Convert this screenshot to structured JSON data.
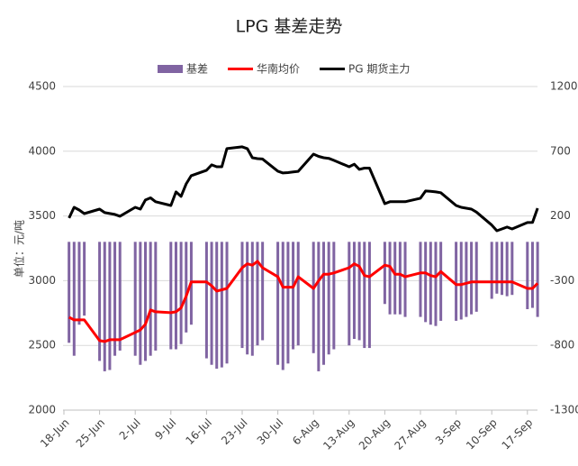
{
  "chart_data": {
    "type": "bar_line",
    "title": "LPG 基差走势",
    "y_label": "单位：元/吨",
    "categories": [
      "18-Jun",
      null,
      null,
      null,
      null,
      "25-Jun",
      null,
      null,
      null,
      null,
      "2-Jul",
      null,
      null,
      null,
      null,
      "9-Jul",
      null,
      null,
      null,
      null,
      "16-Jul",
      null,
      null,
      null,
      null,
      "23-Jul",
      null,
      null,
      null,
      null,
      "30-Jul",
      null,
      null,
      null,
      null,
      "6-Aug",
      null,
      null,
      null,
      null,
      "13-Aug",
      null,
      null,
      null,
      null,
      "20-Aug",
      null,
      null,
      null,
      null,
      "27-Aug",
      null,
      null,
      null,
      null,
      "3-Sep",
      null,
      null,
      null,
      null,
      "10-Sep",
      null,
      null,
      null,
      null,
      "17-Sep",
      null,
      null
    ],
    "series": [
      {
        "name": "基差",
        "type": "bar",
        "axis": "y2",
        "color": "#8064a2",
        "values": [
          null,
          -780,
          -880,
          -640,
          -570,
          -920,
          -1000,
          -990,
          -880,
          -840,
          -880,
          -950,
          -920,
          -880,
          -840,
          -830,
          -830,
          -790,
          -700,
          -640,
          -900,
          -950,
          -980,
          -970,
          -940,
          -820,
          -870,
          -880,
          -800,
          -760,
          -950,
          -990,
          -940,
          -830,
          -800,
          -860,
          -1000,
          -950,
          -870,
          -830,
          -800,
          -750,
          -760,
          -820,
          -820,
          -480,
          -560,
          -560,
          -560,
          -580,
          -580,
          -620,
          -640,
          -650,
          -610,
          -610,
          -600,
          -580,
          -560,
          -540,
          -440,
          -400,
          -410,
          -420,
          -410,
          -520,
          -510,
          -580
        ]
      },
      {
        "name": "华南均价",
        "type": "line",
        "axis": "y",
        "color": "#ff0000",
        "values": [
          null,
          2718,
          2697,
          2697,
          2697,
          2537,
          2530,
          2544,
          2544,
          2544,
          2600,
          2620,
          2663,
          2774,
          2760,
          2753,
          2760,
          2790,
          2880,
          2990,
          2990,
          2960,
          2920,
          2930,
          2940,
          3100,
          3130,
          3120,
          3150,
          3100,
          3030,
          2950,
          2950,
          2950,
          3030,
          2940,
          3000,
          3050,
          3050,
          3060,
          3100,
          3130,
          3110,
          3040,
          3030,
          3120,
          3110,
          3050,
          3050,
          3030,
          3060,
          3060,
          3040,
          3030,
          3070,
          2970,
          2970,
          2980,
          2990,
          2990,
          2990,
          2990,
          2990,
          2990,
          2990,
          2940,
          2940,
          2980
        ]
      },
      {
        "name": "PG 期货主力",
        "type": "line",
        "axis": "y",
        "color": "#000000",
        "values": [
          null,
          3484,
          3567,
          3546,
          3518,
          3553,
          3526,
          3519,
          3512,
          3498,
          3567,
          3553,
          3623,
          3640,
          3610,
          3581,
          3686,
          3651,
          3748,
          3811,
          3853,
          3895,
          3880,
          3880,
          4020,
          4034,
          4020,
          3950,
          3943,
          3940,
          3846,
          3832,
          3835,
          3840,
          3845,
          3978,
          3960,
          3950,
          3945,
          3930,
          3880,
          3900,
          3860,
          3870,
          3870,
          3595,
          3610,
          3610,
          3610,
          3610,
          3637,
          3693,
          3690,
          3686,
          3680,
          3581,
          3567,
          3560,
          3553,
          3530,
          3430,
          3386,
          3400,
          3414,
          3400,
          3449,
          3450,
          3560
        ]
      }
    ],
    "ylim": [
      2000,
      4500
    ],
    "yticks": [
      2000,
      2500,
      3000,
      3500,
      4000,
      4500
    ],
    "y2lim": [
      -1300,
      1200
    ],
    "y2ticks": [
      -1300,
      -800,
      -300,
      200,
      700,
      1200
    ],
    "grid": true,
    "legend": "top"
  }
}
